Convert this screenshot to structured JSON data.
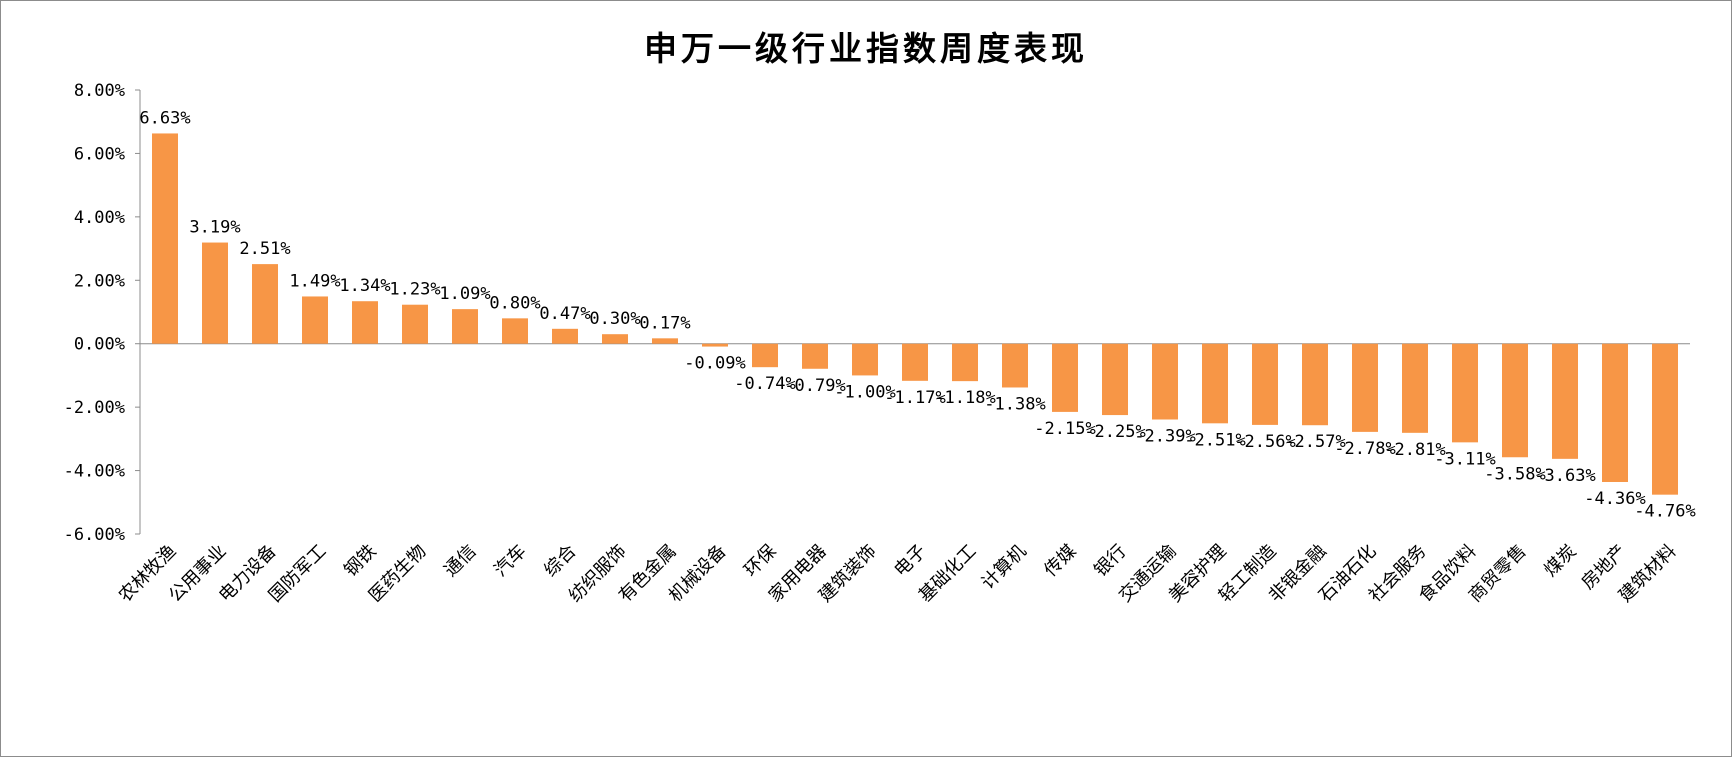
{
  "chart_data": {
    "type": "bar",
    "title": "申万一级行业指数周度表现",
    "xlabel": "",
    "ylabel": "",
    "ylim": [
      -6,
      8
    ],
    "yticks": [
      8,
      6,
      4,
      2,
      0,
      -2,
      -4,
      -6
    ],
    "ytick_labels": [
      "8.00%",
      "6.00%",
      "4.00%",
      "2.00%",
      "0.00%",
      "-2.00%",
      "-4.00%",
      "-6.00%"
    ],
    "grid": false,
    "legend": "none",
    "bar_color": "#F79646",
    "categories": [
      "农林牧渔",
      "公用事业",
      "电力设备",
      "国防军工",
      "钢铁",
      "医药生物",
      "通信",
      "汽车",
      "综合",
      "纺织服饰",
      "有色金属",
      "机械设备",
      "环保",
      "家用电器",
      "建筑装饰",
      "电子",
      "基础化工",
      "计算机",
      "传媒",
      "银行",
      "交通运输",
      "美容护理",
      "轻工制造",
      "非银金融",
      "石油石化",
      "社会服务",
      "食品饮料",
      "商贸零售",
      "煤炭",
      "房地产",
      "建筑材料"
    ],
    "values": [
      6.63,
      3.19,
      2.51,
      1.49,
      1.34,
      1.23,
      1.09,
      0.8,
      0.47,
      0.3,
      0.17,
      -0.09,
      -0.74,
      -0.79,
      -1.0,
      -1.17,
      -1.18,
      -1.38,
      -2.15,
      -2.25,
      -2.39,
      -2.51,
      -2.56,
      -2.57,
      -2.78,
      -2.81,
      -3.11,
      -3.58,
      -3.63,
      -4.36,
      -4.76
    ],
    "data_labels": [
      "6.63%",
      "3.19%",
      "2.51%",
      "1.49%",
      "1.34%",
      "1.23%",
      "1.09%",
      "0.80%",
      "0.47%",
      "0.30%",
      "0.17%",
      "-0.09%",
      "-0.74%",
      "-0.79%",
      "-1.00%",
      "-1.17%",
      "-1.18%",
      "-1.38%",
      "-2.15%",
      "-2.25%",
      "-2.39%",
      "-2.51%",
      "-2.56%",
      "-2.57%",
      "-2.78%",
      "-2.81%",
      "-3.11%",
      "-3.58%",
      "-3.63%",
      "-4.36%",
      "-4.76%"
    ]
  }
}
